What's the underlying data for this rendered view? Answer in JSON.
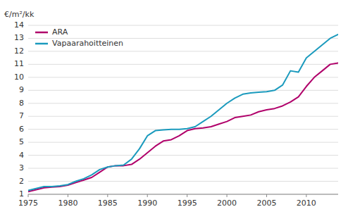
{
  "chart_data": {
    "type": "line",
    "ylabel": "€/m²/kk",
    "x": [
      1975,
      1976,
      1977,
      1978,
      1979,
      1980,
      1981,
      1982,
      1983,
      1984,
      1985,
      1986,
      1987,
      1988,
      1989,
      1990,
      1991,
      1992,
      1993,
      1994,
      1995,
      1996,
      1997,
      1998,
      1999,
      2000,
      2001,
      2002,
      2003,
      2004,
      2005,
      2006,
      2007,
      2008,
      2009,
      2010,
      2011,
      2012,
      2013,
      2014
    ],
    "series": [
      {
        "name": "ARA",
        "color": "#b0006a",
        "values": [
          1.2,
          1.35,
          1.5,
          1.55,
          1.6,
          1.7,
          1.9,
          2.1,
          2.3,
          2.7,
          3.1,
          3.2,
          3.2,
          3.3,
          3.7,
          4.2,
          4.7,
          5.1,
          5.2,
          5.5,
          5.9,
          6.05,
          6.1,
          6.2,
          6.4,
          6.6,
          6.9,
          7.0,
          7.1,
          7.35,
          7.5,
          7.6,
          7.8,
          8.1,
          8.5,
          9.3,
          10.0,
          10.5,
          11.0,
          11.1
        ]
      },
      {
        "name": "Vapaarahoitteinen",
        "color": "#1a9abd",
        "values": [
          1.3,
          1.45,
          1.6,
          1.6,
          1.65,
          1.75,
          2.0,
          2.2,
          2.5,
          2.9,
          3.1,
          3.2,
          3.25,
          3.7,
          4.5,
          5.5,
          5.9,
          5.95,
          6.0,
          6.0,
          6.05,
          6.2,
          6.6,
          7.0,
          7.5,
          8.0,
          8.4,
          8.7,
          8.8,
          8.85,
          8.9,
          9.0,
          9.4,
          10.5,
          10.4,
          11.5,
          12.0,
          12.5,
          13.0,
          13.3
        ]
      }
    ],
    "xlim": [
      1975,
      2014
    ],
    "ylim": [
      1,
      14
    ],
    "xticks": [
      1975,
      1980,
      1985,
      1990,
      1995,
      2000,
      2005,
      2010
    ],
    "yticks": [
      1,
      2,
      3,
      4,
      5,
      6,
      7,
      8,
      9,
      10,
      11,
      12,
      13,
      14
    ],
    "grid": true,
    "legend": "upper left"
  }
}
